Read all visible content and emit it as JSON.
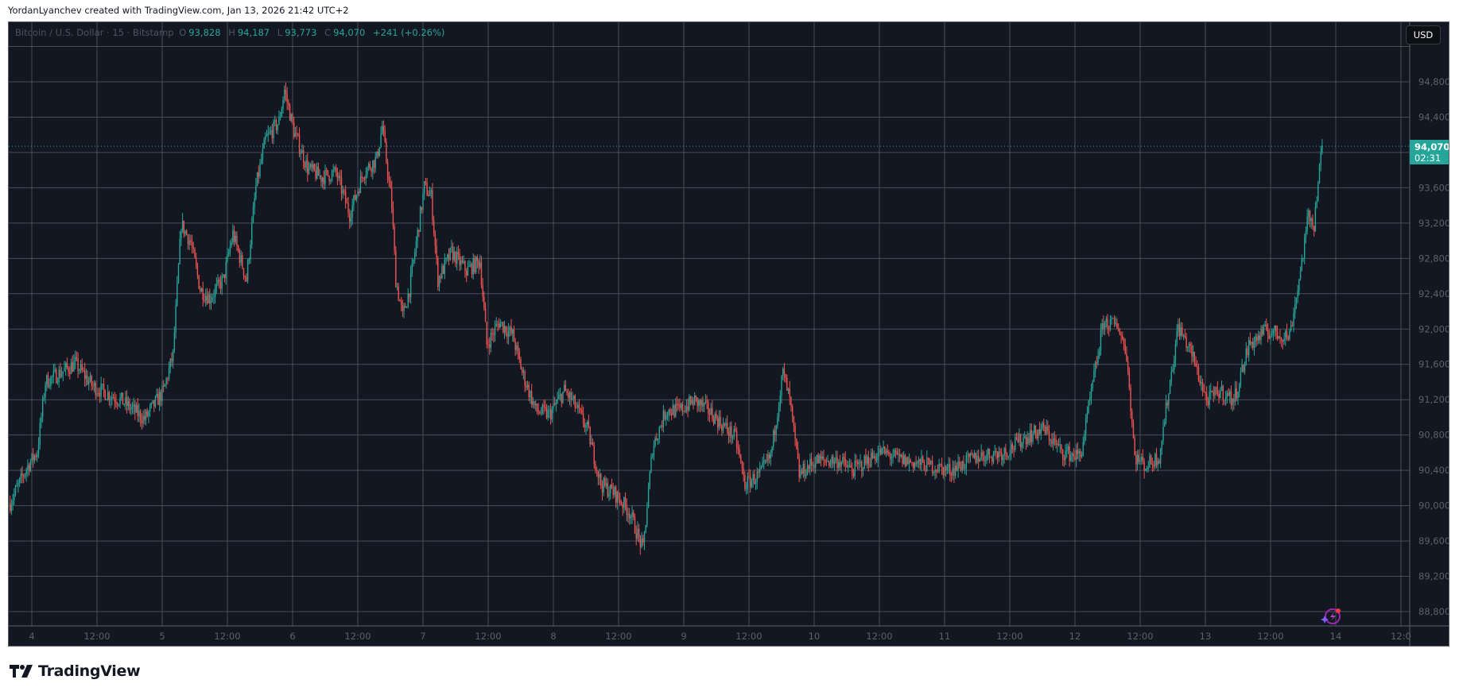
{
  "credit": "YordanLyanchev created with TradingView.com, Jan 13, 2026 21:42 UTC+2",
  "legend": {
    "symbol": "Bitcoin / U.S. Dollar · 15 · Bitstamp",
    "o_label": "O",
    "o": "93,828",
    "h_label": "H",
    "h": "94,187",
    "l_label": "L",
    "l": "93,773",
    "c_label": "C",
    "c": "94,070",
    "change": "+241 (+0.26%)"
  },
  "currency_button": "USD",
  "last_price": {
    "price": "94,070",
    "countdown": "02:31"
  },
  "logo_text": "TradingView",
  "colors": {
    "background": "#131722",
    "grid": "#5d606b",
    "up": "#26a69a",
    "down": "#ef5350",
    "axis_text": "#5d606b",
    "last_price": "#26a69a"
  },
  "chart_data": {
    "type": "candlestick",
    "interval": "15",
    "title": "Bitcoin / U.S. Dollar · 15 · Bitstamp",
    "ylim": [
      88600,
      95000
    ],
    "grid": true,
    "y_ticks": [
      "94,800",
      "94,400",
      "94,000",
      "93,600",
      "93,200",
      "92,800",
      "92,400",
      "92,000",
      "91,600",
      "91,200",
      "90,800",
      "90,400",
      "90,000",
      "89,600",
      "89,200",
      "88,800"
    ],
    "x_ticks": [
      "4",
      "12:00",
      "5",
      "12:00",
      "6",
      "12:00",
      "7",
      "12:00",
      "8",
      "12:00",
      "9",
      "12:00",
      "10",
      "12:00",
      "11",
      "12:00",
      "12",
      "12:00",
      "13",
      "12:00",
      "14",
      "12:0"
    ],
    "last_close": 94070,
    "approx_price_path": [
      [
        "2026-01-03T20:00",
        90030
      ],
      [
        "2026-01-03T23:15",
        90450
      ],
      [
        "2026-01-04T01:00",
        90610
      ],
      [
        "2026-01-04T02:30",
        91400
      ],
      [
        "2026-01-04T08:00",
        91610
      ],
      [
        "2026-01-04T11:15",
        91350
      ],
      [
        "2026-01-04T16:30",
        91190
      ],
      [
        "2026-01-04T20:45",
        90980
      ],
      [
        "2026-01-05T00:15",
        91300
      ],
      [
        "2026-01-05T02:00",
        91710
      ],
      [
        "2026-01-05T03:30",
        93190
      ],
      [
        "2026-01-05T05:15",
        92980
      ],
      [
        "2026-01-05T07:00",
        92450
      ],
      [
        "2026-01-05T08:45",
        92350
      ],
      [
        "2026-01-05T11:15",
        92560
      ],
      [
        "2026-01-05T13:00",
        93080
      ],
      [
        "2026-01-05T15:30",
        92560
      ],
      [
        "2026-01-05T17:15",
        93610
      ],
      [
        "2026-01-05T19:00",
        94140
      ],
      [
        "2026-01-05T21:30",
        94350
      ],
      [
        "2026-01-05T22:30",
        94710
      ],
      [
        "2026-01-06T00:15",
        94240
      ],
      [
        "2026-01-06T02:45",
        93820
      ],
      [
        "2026-01-06T05:15",
        93720
      ],
      [
        "2026-01-06T08:00",
        93770
      ],
      [
        "2026-01-06T10:30",
        93300
      ],
      [
        "2026-01-06T13:00",
        93770
      ],
      [
        "2026-01-06T15:30",
        93930
      ],
      [
        "2026-01-06T16:30",
        94300
      ],
      [
        "2026-01-06T18:15",
        93400
      ],
      [
        "2026-01-06T19:00",
        92560
      ],
      [
        "2026-01-06T20:15",
        92140
      ],
      [
        "2026-01-06T21:30",
        92450
      ],
      [
        "2026-01-07T00:15",
        93610
      ],
      [
        "2026-01-07T01:30",
        93500
      ],
      [
        "2026-01-07T02:45",
        92560
      ],
      [
        "2026-01-07T05:15",
        92870
      ],
      [
        "2026-01-07T08:00",
        92660
      ],
      [
        "2026-01-07T10:30",
        92770
      ],
      [
        "2026-01-07T11:45",
        91820
      ],
      [
        "2026-01-07T14:00",
        92080
      ],
      [
        "2026-01-07T16:30",
        91930
      ],
      [
        "2026-01-07T18:15",
        91510
      ],
      [
        "2026-01-07T20:45",
        91080
      ],
      [
        "2026-01-07T23:15",
        91030
      ],
      [
        "2026-01-08T02:00",
        91300
      ],
      [
        "2026-01-08T03:30",
        91190
      ],
      [
        "2026-01-08T06:15",
        90870
      ],
      [
        "2026-01-08T08:45",
        90240
      ],
      [
        "2026-01-08T11:15",
        90140
      ],
      [
        "2026-01-08T14:00",
        89930
      ],
      [
        "2026-01-08T16:30",
        89500
      ],
      [
        "2026-01-08T18:15",
        90660
      ],
      [
        "2026-01-08T20:45",
        91080
      ],
      [
        "2026-01-08T23:15",
        91080
      ],
      [
        "2026-01-09T02:00",
        91190
      ],
      [
        "2026-01-09T04:30",
        91080
      ],
      [
        "2026-01-09T07:00",
        90920
      ],
      [
        "2026-01-09T09:30",
        90770
      ],
      [
        "2026-01-09T11:15",
        90240
      ],
      [
        "2026-01-09T14:00",
        90350
      ],
      [
        "2026-01-09T16:00",
        90560
      ],
      [
        "2026-01-09T18:15",
        91510
      ],
      [
        "2026-01-09T19:30",
        91190
      ],
      [
        "2026-01-09T21:15",
        90350
      ],
      [
        "2026-01-10T00:15",
        90510
      ],
      [
        "2026-01-10T04:30",
        90510
      ],
      [
        "2026-01-10T07:00",
        90400
      ],
      [
        "2026-01-10T12:15",
        90610
      ],
      [
        "2026-01-10T16:30",
        90510
      ],
      [
        "2026-01-10T21:30",
        90450
      ],
      [
        "2026-01-11T01:00",
        90400
      ],
      [
        "2026-01-11T06:15",
        90560
      ],
      [
        "2026-01-11T11:15",
        90610
      ],
      [
        "2026-01-11T14:45",
        90770
      ],
      [
        "2026-01-11T18:15",
        90870
      ],
      [
        "2026-01-11T21:30",
        90610
      ],
      [
        "2026-01-12T01:00",
        90560
      ],
      [
        "2026-01-12T02:45",
        91190
      ],
      [
        "2026-01-12T05:15",
        92080
      ],
      [
        "2026-01-12T08:00",
        92030
      ],
      [
        "2026-01-12T09:30",
        91720
      ],
      [
        "2026-01-12T11:00",
        90560
      ],
      [
        "2026-01-12T13:00",
        90450
      ],
      [
        "2026-01-12T15:30",
        90560
      ],
      [
        "2026-01-12T17:15",
        91300
      ],
      [
        "2026-01-12T19:00",
        92030
      ],
      [
        "2026-01-12T21:30",
        91720
      ],
      [
        "2026-01-13T00:15",
        91190
      ],
      [
        "2026-01-13T02:45",
        91300
      ],
      [
        "2026-01-13T05:15",
        91190
      ],
      [
        "2026-01-13T08:00",
        91820
      ],
      [
        "2026-01-13T11:15",
        91980
      ],
      [
        "2026-01-13T14:00",
        91930
      ],
      [
        "2026-01-13T15:30",
        91930
      ],
      [
        "2026-01-13T17:15",
        92560
      ],
      [
        "2026-01-13T19:00",
        93290
      ],
      [
        "2026-01-13T20:00",
        93190
      ],
      [
        "2026-01-13T20:45",
        93670
      ],
      [
        "2026-01-13T21:30",
        94070
      ]
    ]
  }
}
